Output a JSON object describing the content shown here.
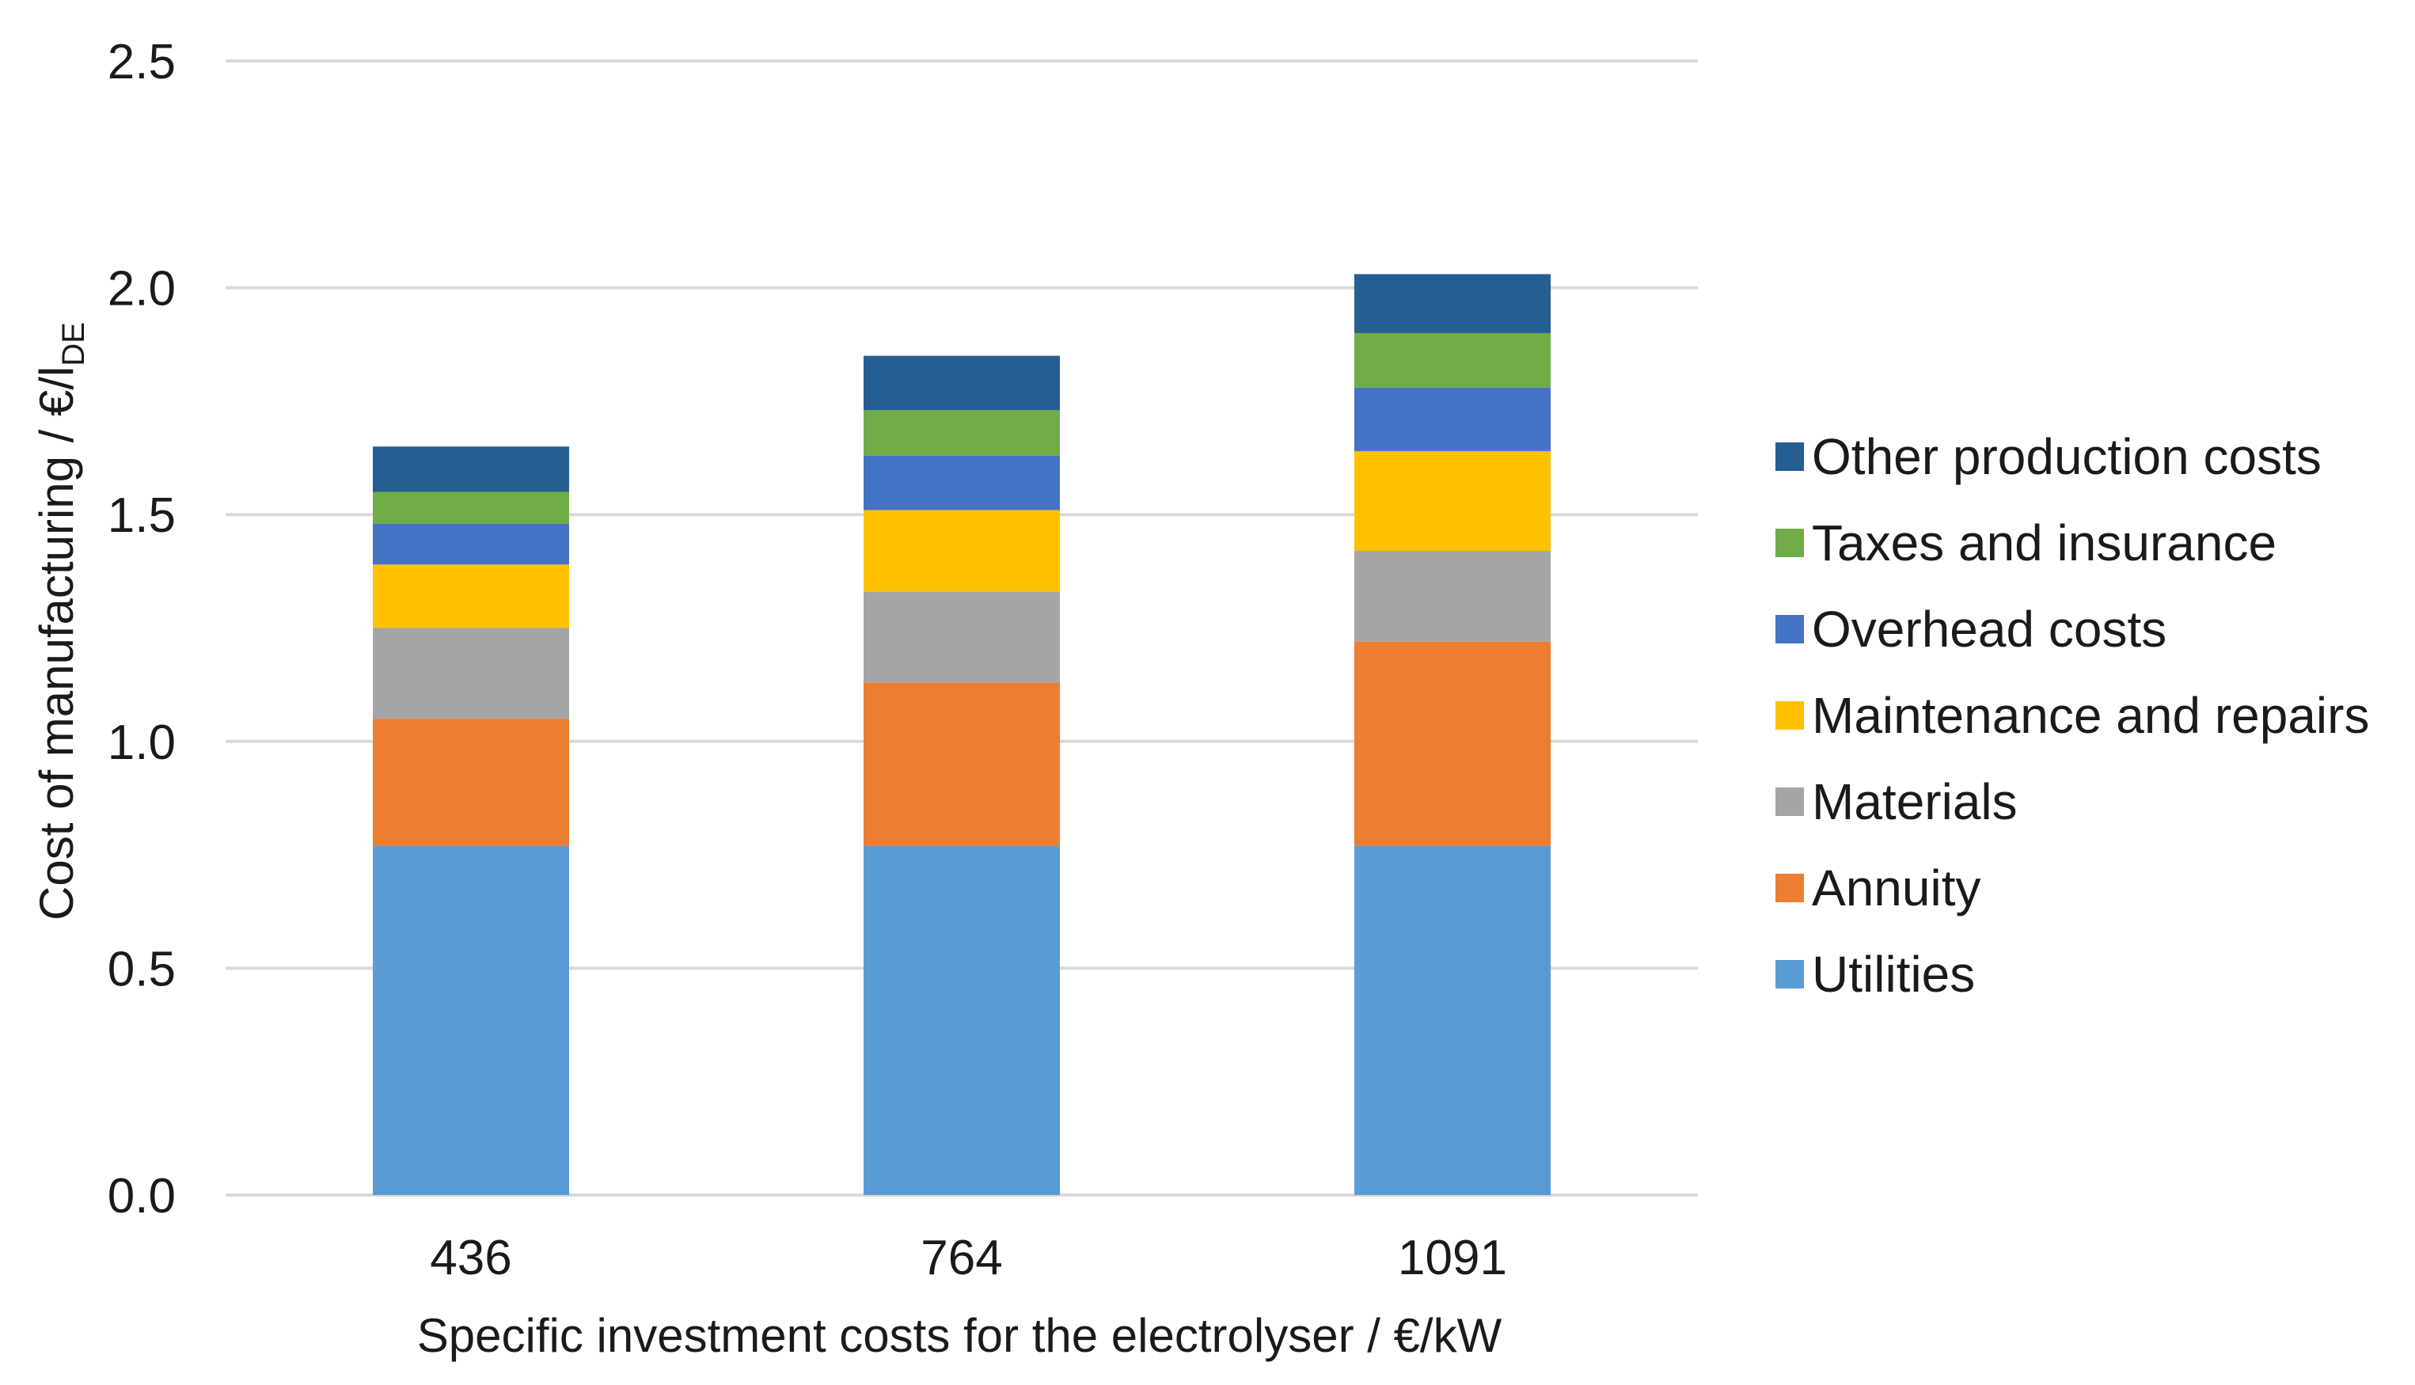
{
  "chart_data": {
    "type": "bar",
    "stacked": true,
    "title": "",
    "xlabel": "Specific investment costs for the electrolyser / €/kW",
    "ylabel": {
      "main": "Cost of manufacturing / €/l",
      "subscript": "DE"
    },
    "ylim": [
      0,
      2.5
    ],
    "yticks": [
      "0.0",
      "0.5",
      "1.0",
      "1.5",
      "2.0",
      "2.5"
    ],
    "ytick_values": [
      0,
      0.5,
      1.0,
      1.5,
      2.0,
      2.5
    ],
    "categories": [
      "436",
      "764",
      "1091"
    ],
    "grid": true,
    "legend_position": "right",
    "series": [
      {
        "name": "Utilities",
        "color": "#5b9bd5",
        "values": [
          0.77,
          0.77,
          0.77
        ]
      },
      {
        "name": "Annuity",
        "color": "#ed7d31",
        "values": [
          0.28,
          0.36,
          0.45
        ]
      },
      {
        "name": "Materials",
        "color": "#a5a5a5",
        "values": [
          0.2,
          0.2,
          0.2
        ]
      },
      {
        "name": "Maintenance and repairs",
        "color": "#ffc000",
        "values": [
          0.14,
          0.18,
          0.22
        ]
      },
      {
        "name": "Overhead costs",
        "color": "#4472c4",
        "values": [
          0.09,
          0.12,
          0.14
        ]
      },
      {
        "name": "Taxes and insurance",
        "color": "#70ad47",
        "values": [
          0.07,
          0.1,
          0.12
        ]
      },
      {
        "name": "Other production costs",
        "color": "#255e91",
        "values": [
          0.1,
          0.12,
          0.13
        ]
      }
    ]
  }
}
